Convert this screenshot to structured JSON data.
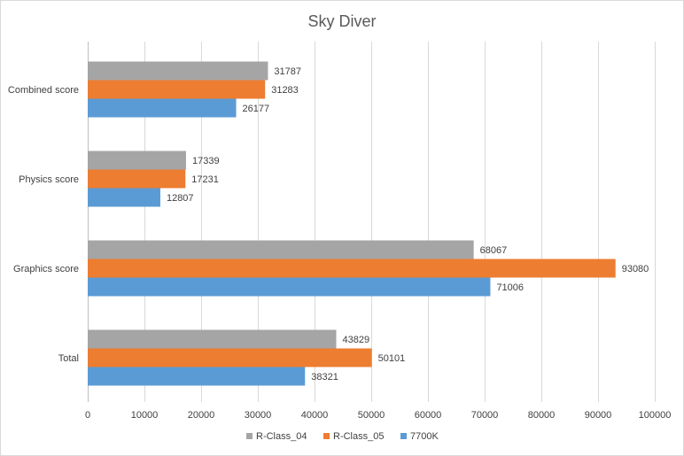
{
  "chart_data": {
    "type": "bar",
    "orientation": "horizontal",
    "title": "Sky Diver",
    "categories": [
      "Combined score",
      "Physics score",
      "Graphics score",
      "Total"
    ],
    "series": [
      {
        "name": "R-Class_04",
        "color": "#a5a5a5",
        "values": [
          31787,
          17339,
          68067,
          43829
        ]
      },
      {
        "name": "R-Class_05",
        "color": "#ed7d31",
        "values": [
          31283,
          17231,
          93080,
          50101
        ]
      },
      {
        "name": "7700K",
        "color": "#5b9bd5",
        "values": [
          26177,
          12807,
          71006,
          38321
        ]
      }
    ],
    "xlim": [
      0,
      100000
    ],
    "xticks": [
      0,
      10000,
      20000,
      30000,
      40000,
      50000,
      60000,
      70000,
      80000,
      90000,
      100000
    ],
    "xlabel": "",
    "ylabel": "",
    "grid": true,
    "legend_position": "bottom",
    "gridline_color": "#d9d9d9",
    "axis_color": "#bfbfbf"
  }
}
